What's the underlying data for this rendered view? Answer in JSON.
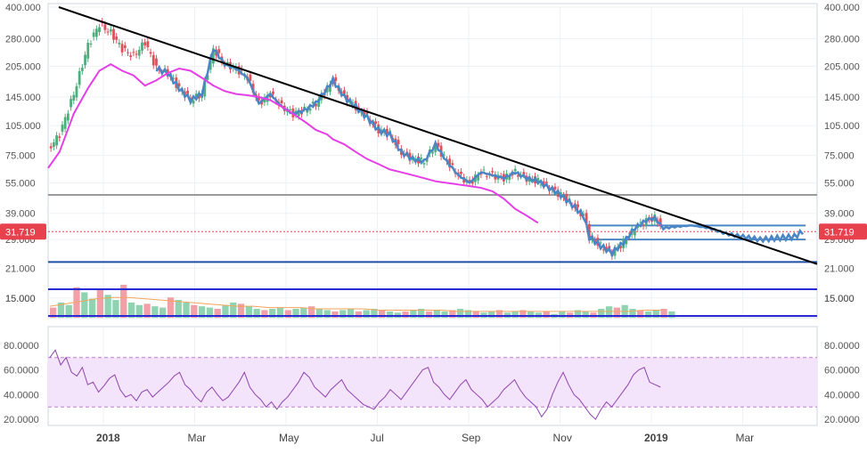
{
  "chart_data": [
    {
      "type": "candlestick",
      "title": "",
      "xlabel": "",
      "ylabel": "",
      "y_scale": "log",
      "ylim": [
        12000,
        400000
      ],
      "y_ticks": [
        15000,
        21000,
        29000,
        39000,
        55000,
        75000,
        105000,
        145000,
        205000,
        280000,
        400000
      ],
      "y_tick_labels": [
        "15.000",
        "21.000",
        "29.000",
        "39.000",
        "55.000",
        "75.000",
        "105.000",
        "145.000",
        "205.000",
        "280.000",
        "400.000"
      ],
      "x_ticks": [
        "2018",
        "Mar",
        "May",
        "Jul",
        "Sep",
        "Nov",
        "2019",
        "Mar"
      ],
      "last_price_label": "31.719",
      "last_price": 31719,
      "grid": true,
      "colors": {
        "up": "#4caf7d",
        "down": "#e0505a",
        "blue_line": "#4a86c6",
        "moving_average": "#e63ee6",
        "trendline": "#000000",
        "support": "#1f4fa6",
        "resistance": "#9a9a9a",
        "channel": "#2a2ad6",
        "price_tag": "#e8414e"
      },
      "price_path": [
        [
          0,
          80000
        ],
        [
          4,
          95000
        ],
        [
          9,
          150000
        ],
        [
          14,
          260000
        ],
        [
          18,
          330000
        ],
        [
          22,
          300000
        ],
        [
          26,
          250000
        ],
        [
          30,
          230000
        ],
        [
          34,
          270000
        ],
        [
          38,
          200000
        ],
        [
          42,
          190000
        ],
        [
          46,
          160000
        ],
        [
          50,
          140000
        ],
        [
          54,
          150000
        ],
        [
          58,
          250000
        ],
        [
          62,
          210000
        ],
        [
          66,
          200000
        ],
        [
          70,
          180000
        ],
        [
          74,
          135000
        ],
        [
          78,
          150000
        ],
        [
          82,
          130000
        ],
        [
          86,
          120000
        ],
        [
          90,
          125000
        ],
        [
          94,
          135000
        ],
        [
          98,
          160000
        ],
        [
          100,
          175000
        ],
        [
          104,
          145000
        ],
        [
          108,
          130000
        ],
        [
          112,
          115000
        ],
        [
          116,
          100000
        ],
        [
          120,
          95000
        ],
        [
          124,
          78000
        ],
        [
          128,
          72000
        ],
        [
          132,
          70000
        ],
        [
          136,
          85000
        ],
        [
          140,
          70000
        ],
        [
          144,
          60000
        ],
        [
          148,
          55000
        ],
        [
          152,
          62000
        ],
        [
          156,
          60000
        ],
        [
          160,
          58000
        ],
        [
          164,
          62000
        ],
        [
          168,
          58000
        ],
        [
          172,
          56000
        ],
        [
          176,
          52000
        ],
        [
          180,
          48000
        ],
        [
          184,
          43000
        ],
        [
          188,
          38000
        ],
        [
          190,
          30000
        ],
        [
          194,
          27000
        ],
        [
          198,
          25000
        ],
        [
          202,
          28000
        ],
        [
          206,
          33000
        ],
        [
          210,
          36000
        ],
        [
          213,
          37000
        ],
        [
          216,
          33000
        ],
        [
          220,
          33500
        ],
        [
          226,
          34000
        ],
        [
          232,
          33000
        ],
        [
          238,
          31000
        ],
        [
          244,
          30000
        ],
        [
          250,
          29000
        ],
        [
          256,
          29500
        ],
        [
          262,
          30000
        ],
        [
          265,
          31719
        ]
      ],
      "moving_average_path": [
        [
          0,
          65000
        ],
        [
          4,
          78000
        ],
        [
          9,
          120000
        ],
        [
          14,
          160000
        ],
        [
          18,
          195000
        ],
        [
          22,
          210000
        ],
        [
          26,
          195000
        ],
        [
          30,
          185000
        ],
        [
          34,
          165000
        ],
        [
          38,
          175000
        ],
        [
          42,
          190000
        ],
        [
          46,
          200000
        ],
        [
          50,
          195000
        ],
        [
          54,
          180000
        ],
        [
          58,
          165000
        ],
        [
          62,
          155000
        ],
        [
          66,
          150000
        ],
        [
          70,
          148000
        ],
        [
          74,
          145000
        ],
        [
          78,
          140000
        ],
        [
          82,
          130000
        ],
        [
          86,
          120000
        ],
        [
          90,
          110000
        ],
        [
          94,
          100000
        ],
        [
          98,
          95000
        ],
        [
          100,
          90000
        ],
        [
          104,
          85000
        ],
        [
          108,
          78000
        ],
        [
          112,
          72000
        ],
        [
          116,
          68000
        ],
        [
          120,
          64000
        ],
        [
          124,
          62000
        ],
        [
          128,
          60000
        ],
        [
          132,
          58000
        ],
        [
          136,
          56000
        ],
        [
          140,
          55000
        ],
        [
          144,
          54000
        ],
        [
          148,
          53000
        ],
        [
          152,
          52000
        ],
        [
          156,
          50000
        ],
        [
          160,
          46000
        ],
        [
          164,
          41000
        ],
        [
          168,
          38000
        ],
        [
          172,
          35000
        ]
      ],
      "trendline": [
        [
          0,
          400000
        ],
        [
          248,
          22000
        ]
      ],
      "horizontal_lines": [
        {
          "name": "Resistance",
          "y": 48000
        },
        {
          "name": "Support",
          "y": 22500
        }
      ],
      "range_box": {
        "top": 34000,
        "bottom": 29000
      }
    },
    {
      "type": "bar",
      "title": "",
      "ylim": [
        0,
        40
      ],
      "y_ticks": [
        15000
      ],
      "y_tick_labels": [
        "15.000"
      ],
      "volume": [
        8,
        12,
        10,
        24,
        20,
        15,
        22,
        18,
        14,
        26,
        12,
        10,
        11,
        9,
        8,
        16,
        14,
        12,
        10,
        9,
        8,
        7,
        10,
        12,
        11,
        9,
        7,
        6,
        7,
        8,
        6,
        7,
        8,
        9,
        7,
        6,
        5,
        6,
        7,
        5,
        6,
        7,
        6,
        5,
        4,
        5,
        6,
        7,
        5,
        6,
        5,
        6,
        7,
        6,
        5,
        4,
        5,
        6,
        4,
        5,
        6,
        5,
        4,
        5,
        3,
        5,
        4,
        6,
        5,
        4,
        7,
        9,
        8,
        10,
        7,
        6,
        5,
        6,
        7,
        5
      ],
      "volume_ma": [
        9,
        11,
        13,
        15,
        16,
        16,
        15,
        14,
        13,
        12,
        11,
        10,
        9,
        9,
        8,
        8,
        8,
        7,
        7,
        7,
        7,
        6,
        6,
        6,
        6,
        6,
        5,
        5,
        5,
        5,
        5,
        5,
        5,
        5,
        5,
        5,
        5,
        5,
        6,
        6
      ]
    },
    {
      "type": "line",
      "title": "",
      "ylim": [
        15,
        95
      ],
      "y_ticks": [
        20,
        40,
        60,
        80
      ],
      "y_tick_labels": [
        "20.0000",
        "40.0000",
        "60.0000",
        "80.0000"
      ],
      "band": [
        30,
        70
      ],
      "rsi": [
        70,
        76,
        64,
        70,
        58,
        55,
        62,
        48,
        50,
        42,
        47,
        53,
        56,
        44,
        38,
        40,
        35,
        42,
        44,
        38,
        42,
        46,
        50,
        55,
        58,
        48,
        44,
        38,
        34,
        42,
        46,
        40,
        35,
        38,
        44,
        50,
        58,
        46,
        40,
        36,
        30,
        34,
        28,
        34,
        38,
        44,
        50,
        58,
        54,
        46,
        42,
        38,
        44,
        48,
        52,
        44,
        40,
        36,
        32,
        30,
        28,
        34,
        38,
        44,
        40,
        36,
        42,
        48,
        54,
        60,
        62,
        50,
        46,
        40,
        36,
        42,
        48,
        52,
        44,
        40,
        36,
        30,
        34,
        38,
        44,
        48,
        52,
        44,
        38,
        34,
        30,
        22,
        28,
        40,
        50,
        58,
        48,
        40,
        36,
        30,
        24,
        20,
        28,
        34,
        30,
        36,
        42,
        48,
        56,
        60,
        62,
        50,
        48,
        46
      ]
    }
  ],
  "x_axis": {
    "labels": [
      "2018",
      "Mar",
      "May",
      "Jul",
      "Sep",
      "Nov",
      "2019",
      "Mar"
    ]
  }
}
